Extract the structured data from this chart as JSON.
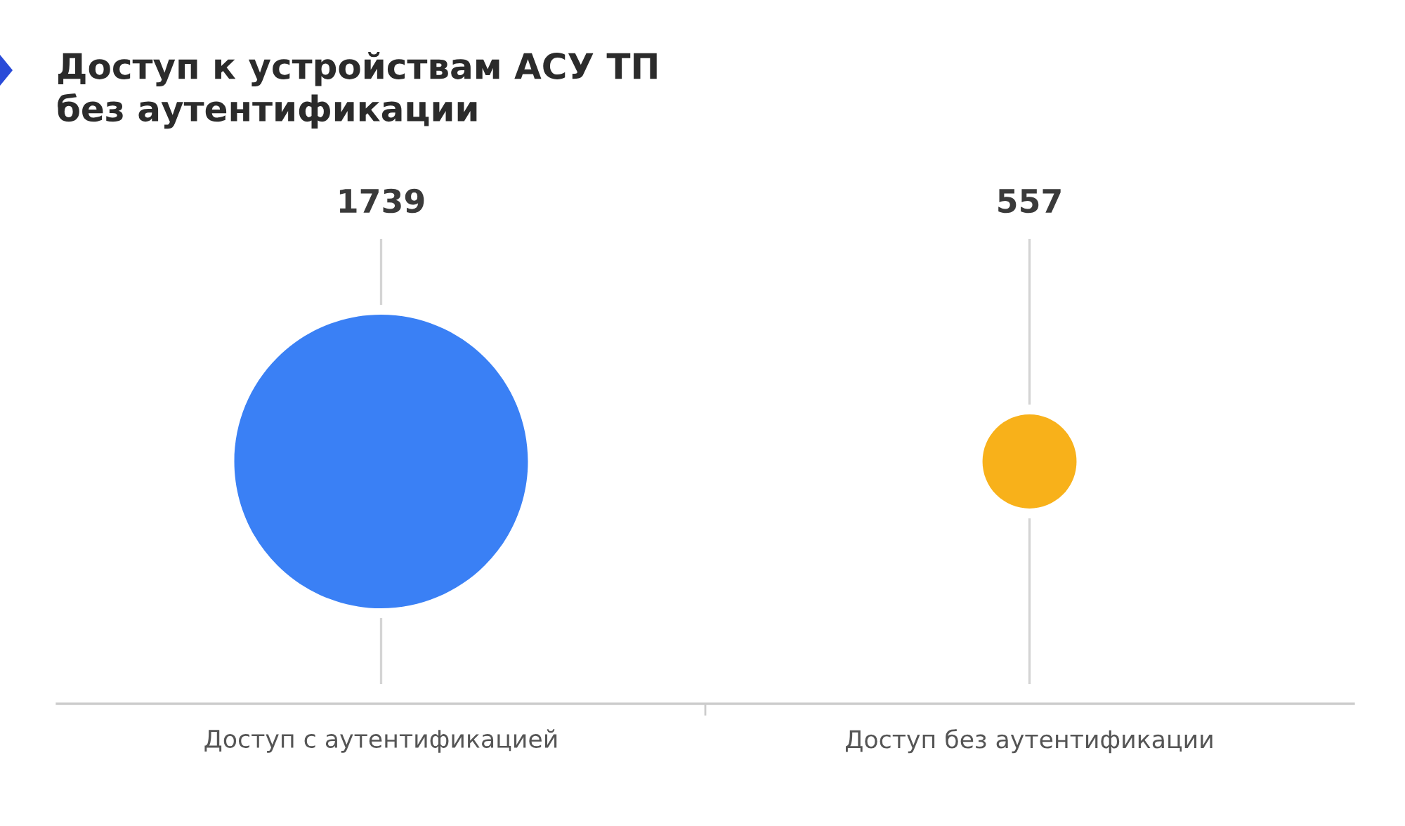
{
  "chart_data": {
    "type": "other",
    "title": "Доступ к устройствам АСУ ТП\nбез аутентификации",
    "categories": [
      "Доступ с аутентификацией",
      "Доступ без аутентификации"
    ],
    "values": [
      1739,
      557
    ],
    "colors": [
      "#3a80f5",
      "#f8b11a"
    ],
    "data_labels": true
  }
}
